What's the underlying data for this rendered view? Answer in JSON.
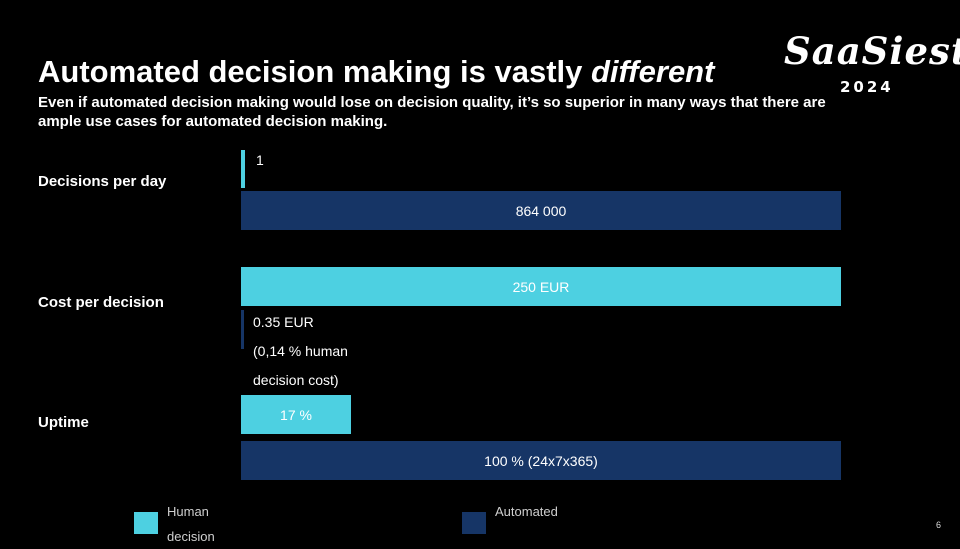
{
  "slide": {
    "title_main": "Automated decision making is vastly ",
    "title_emphasis": "different",
    "subtitle": "Even if automated decision making would lose on decision quality, it’s so superior in many ways that there are ample use cases for automated decision making.",
    "page_number": "6"
  },
  "logo": {
    "script_text": "SaaSiest",
    "year": "2024"
  },
  "rows": [
    {
      "label": "Decisions per day",
      "human_value": "1",
      "automated_value": "864 000"
    },
    {
      "label": "Cost per decision",
      "human_value": "250 EUR",
      "automated_value": "0.35 EUR (0,14 % human decision cost)"
    },
    {
      "label": "Uptime",
      "human_value": "17 %",
      "automated_value": "100 % (24x7x365)"
    }
  ],
  "legend": {
    "human": "Human decision",
    "automated": "Automated"
  },
  "colors": {
    "background": "#000000",
    "human": "#4dd0e1",
    "automated": "#163566"
  }
}
